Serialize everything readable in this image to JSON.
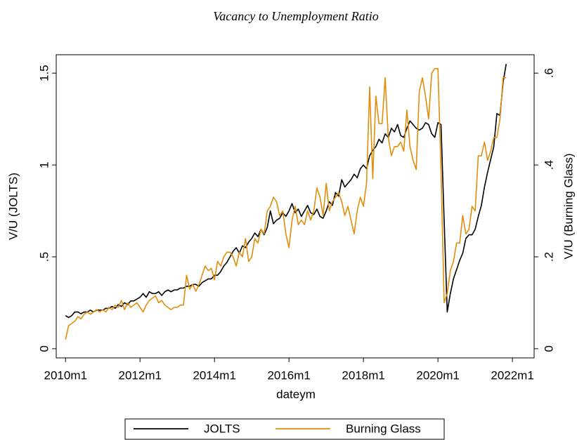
{
  "chart_data": {
    "type": "line",
    "title": "Vacancy to Unemployment Ratio",
    "x_label": "dateym",
    "y_label": "V/U (JOLTS)",
    "y2_label": "V/U (Burning Glass)",
    "x": [
      "2010m1",
      "2010m2",
      "2010m3",
      "2010m4",
      "2010m5",
      "2010m6",
      "2010m7",
      "2010m8",
      "2010m9",
      "2010m10",
      "2010m11",
      "2010m12",
      "2011m1",
      "2011m2",
      "2011m3",
      "2011m4",
      "2011m5",
      "2011m6",
      "2011m7",
      "2011m8",
      "2011m9",
      "2011m10",
      "2011m11",
      "2011m12",
      "2012m1",
      "2012m2",
      "2012m3",
      "2012m4",
      "2012m5",
      "2012m6",
      "2012m7",
      "2012m8",
      "2012m9",
      "2012m10",
      "2012m11",
      "2012m12",
      "2013m1",
      "2013m2",
      "2013m3",
      "2013m4",
      "2013m5",
      "2013m6",
      "2013m7",
      "2013m8",
      "2013m9",
      "2013m10",
      "2013m11",
      "2013m12",
      "2014m1",
      "2014m2",
      "2014m3",
      "2014m4",
      "2014m5",
      "2014m6",
      "2014m7",
      "2014m8",
      "2014m9",
      "2014m10",
      "2014m11",
      "2014m12",
      "2015m1",
      "2015m2",
      "2015m3",
      "2015m4",
      "2015m5",
      "2015m6",
      "2015m7",
      "2015m8",
      "2015m9",
      "2015m10",
      "2015m11",
      "2015m12",
      "2016m1",
      "2016m2",
      "2016m3",
      "2016m4",
      "2016m5",
      "2016m6",
      "2016m7",
      "2016m8",
      "2016m9",
      "2016m10",
      "2016m11",
      "2016m12",
      "2017m1",
      "2017m2",
      "2017m3",
      "2017m4",
      "2017m5",
      "2017m6",
      "2017m7",
      "2017m8",
      "2017m9",
      "2017m10",
      "2017m11",
      "2017m12",
      "2018m1",
      "2018m2",
      "2018m3",
      "2018m4",
      "2018m5",
      "2018m6",
      "2018m7",
      "2018m8",
      "2018m9",
      "2018m10",
      "2018m11",
      "2018m12",
      "2019m1",
      "2019m2",
      "2019m3",
      "2019m4",
      "2019m5",
      "2019m6",
      "2019m7",
      "2019m8",
      "2019m9",
      "2019m10",
      "2019m11",
      "2019m12",
      "2020m1",
      "2020m2",
      "2020m3",
      "2020m4",
      "2020m5",
      "2020m6",
      "2020m7",
      "2020m8",
      "2020m9",
      "2020m10",
      "2020m11",
      "2020m12",
      "2021m1",
      "2021m2",
      "2021m3",
      "2021m4",
      "2021m5",
      "2021m6",
      "2021m7",
      "2021m8",
      "2021m9",
      "2021m10",
      "2021m11"
    ],
    "series": [
      {
        "name": "JOLTS",
        "color": "#000000",
        "values": [
          0.18,
          0.17,
          0.18,
          0.2,
          0.2,
          0.19,
          0.2,
          0.2,
          0.21,
          0.2,
          0.21,
          0.21,
          0.21,
          0.22,
          0.22,
          0.23,
          0.22,
          0.24,
          0.23,
          0.25,
          0.24,
          0.26,
          0.26,
          0.27,
          0.28,
          0.3,
          0.28,
          0.31,
          0.3,
          0.3,
          0.31,
          0.29,
          0.31,
          0.32,
          0.31,
          0.32,
          0.32,
          0.33,
          0.33,
          0.34,
          0.34,
          0.35,
          0.35,
          0.34,
          0.36,
          0.37,
          0.38,
          0.38,
          0.4,
          0.4,
          0.42,
          0.45,
          0.47,
          0.5,
          0.53,
          0.55,
          0.52,
          0.56,
          0.55,
          0.58,
          0.6,
          0.63,
          0.61,
          0.65,
          0.62,
          0.66,
          0.75,
          0.68,
          0.7,
          0.71,
          0.74,
          0.72,
          0.75,
          0.79,
          0.74,
          0.76,
          0.72,
          0.75,
          0.78,
          0.74,
          0.73,
          0.76,
          0.72,
          0.71,
          0.75,
          0.8,
          0.78,
          0.85,
          0.83,
          0.92,
          0.88,
          0.9,
          0.92,
          0.95,
          0.93,
          0.98,
          1.0,
          0.98,
          1.05,
          1.08,
          1.1,
          1.14,
          1.12,
          1.17,
          1.15,
          1.2,
          1.18,
          1.22,
          1.16,
          1.15,
          1.2,
          1.24,
          1.22,
          1.2,
          1.19,
          1.2,
          1.23,
          1.22,
          1.17,
          1.15,
          1.23,
          1.22,
          0.7,
          0.2,
          0.3,
          0.38,
          0.43,
          0.48,
          0.52,
          0.6,
          0.62,
          0.62,
          0.65,
          0.72,
          0.78,
          0.88,
          0.96,
          1.03,
          1.1,
          1.28,
          1.27,
          1.45,
          1.55
        ]
      },
      {
        "name": "Burning Glass",
        "color": "#e08e0b",
        "axis": "y2",
        "values": [
          0.02,
          0.05,
          0.055,
          0.06,
          0.07,
          0.065,
          0.075,
          0.08,
          0.075,
          0.08,
          0.085,
          0.08,
          0.085,
          0.08,
          0.09,
          0.085,
          0.095,
          0.09,
          0.105,
          0.085,
          0.1,
          0.09,
          0.095,
          0.1,
          0.09,
          0.08,
          0.095,
          0.105,
          0.11,
          0.115,
          0.1,
          0.105,
          0.095,
          0.09,
          0.085,
          0.09,
          0.09,
          0.095,
          0.095,
          0.16,
          0.13,
          0.14,
          0.125,
          0.14,
          0.16,
          0.18,
          0.17,
          0.175,
          0.15,
          0.19,
          0.18,
          0.2,
          0.21,
          0.21,
          0.2,
          0.18,
          0.21,
          0.2,
          0.24,
          0.19,
          0.2,
          0.24,
          0.23,
          0.26,
          0.25,
          0.3,
          0.31,
          0.33,
          0.32,
          0.29,
          0.3,
          0.25,
          0.22,
          0.28,
          0.31,
          0.27,
          0.28,
          0.27,
          0.3,
          0.28,
          0.3,
          0.35,
          0.33,
          0.29,
          0.36,
          0.3,
          0.32,
          0.33,
          0.34,
          0.32,
          0.29,
          0.31,
          0.28,
          0.25,
          0.3,
          0.33,
          0.31,
          0.36,
          0.57,
          0.37,
          0.55,
          0.49,
          0.49,
          0.59,
          0.46,
          0.42,
          0.44,
          0.44,
          0.45,
          0.43,
          0.52,
          0.44,
          0.41,
          0.39,
          0.56,
          0.59,
          0.55,
          0.5,
          0.6,
          0.61,
          0.61,
          0.39,
          0.1,
          0.12,
          0.17,
          0.19,
          0.23,
          0.23,
          0.29,
          0.25,
          0.26,
          0.31,
          0.3,
          0.42,
          0.42,
          0.45,
          0.41,
          0.43,
          0.46,
          0.46,
          0.5,
          0.59,
          0.59
        ]
      }
    ],
    "xlim": [
      "2009m10",
      "2022m8"
    ],
    "xticks": [
      "2010m1",
      "2012m1",
      "2014m1",
      "2016m1",
      "2018m1",
      "2020m1",
      "2022m1"
    ],
    "ylim": [
      -0.05,
      1.6
    ],
    "yticks": [
      0,
      {
        "value": 0.5,
        "label": ".5"
      },
      1,
      1.5
    ],
    "y2lim": [
      -0.02,
      0.64
    ],
    "y2ticks": [
      0,
      {
        "value": 0.2,
        "label": ".2"
      },
      {
        "value": 0.4,
        "label": ".4"
      },
      {
        "value": 0.6,
        "label": ".6"
      }
    ],
    "grid": false,
    "legend": "bottom"
  }
}
